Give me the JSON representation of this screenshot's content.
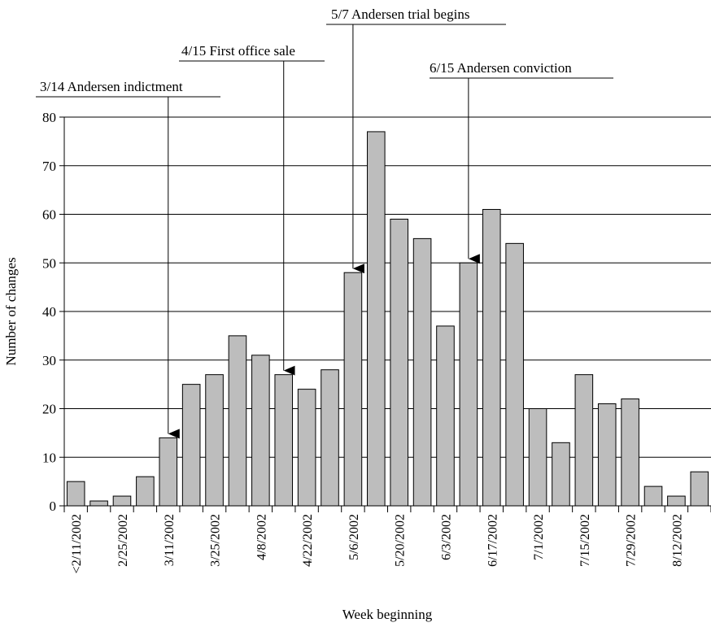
{
  "chart_data": {
    "type": "bar",
    "xlabel": "Week beginning",
    "ylabel": "Number of changes",
    "ylim": [
      0,
      80
    ],
    "yticks": [
      0,
      10,
      20,
      30,
      40,
      50,
      60,
      70,
      80
    ],
    "grid": true,
    "bar_color": "#bdbdbd",
    "values": [
      5,
      1,
      2,
      6,
      14,
      25,
      27,
      35,
      31,
      27,
      24,
      28,
      48,
      77,
      59,
      55,
      37,
      50,
      61,
      54,
      20,
      13,
      27,
      21,
      22,
      4,
      2,
      7
    ],
    "tick_labels": [
      "<2/11/2002",
      "2/25/2002",
      "3/11/2002",
      "3/25/2002",
      "4/8/2002",
      "4/22/2002",
      "5/6/2002",
      "5/20/2002",
      "6/3/2002",
      "6/17/2002",
      "7/1/2002",
      "7/15/2002",
      "7/29/2002",
      "8/12/2002"
    ],
    "annotations": [
      {
        "text": "3/14 Andersen indictment",
        "bar_index": 4
      },
      {
        "text": "4/15 First office sale",
        "bar_index": 9
      },
      {
        "text": "5/7 Andersen trial begins",
        "bar_index": 12
      },
      {
        "text": "6/15 Andersen conviction",
        "bar_index": 17
      }
    ]
  }
}
